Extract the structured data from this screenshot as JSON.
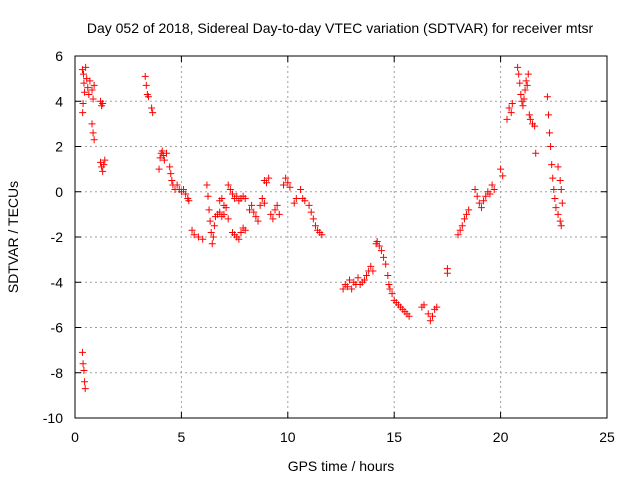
{
  "chart_data": {
    "type": "scatter",
    "title": "Day 052 of 2018, Sidereal Day-to-day VTEC variation (SDTVAR) for receiver mtsr",
    "xlabel": "GPS time / hours",
    "ylabel": "SDTVAR / TECUs",
    "xlim": [
      0,
      25
    ],
    "ylim": [
      -10,
      6
    ],
    "xticks": [
      0,
      5,
      10,
      15,
      20,
      25
    ],
    "yticks": [
      -10,
      -8,
      -6,
      -4,
      -2,
      0,
      2,
      4,
      6
    ],
    "grid": true,
    "marker": "plus",
    "color": "#ff0000",
    "points": [
      [
        0.35,
        5.4
      ],
      [
        0.4,
        5.2
      ],
      [
        0.42,
        4.8
      ],
      [
        0.45,
        4.4
      ],
      [
        0.38,
        3.9
      ],
      [
        0.36,
        3.5
      ],
      [
        0.5,
        5.5
      ],
      [
        0.55,
        5.0
      ],
      [
        0.6,
        4.6
      ],
      [
        0.65,
        4.3
      ],
      [
        0.7,
        4.9
      ],
      [
        0.8,
        4.5
      ],
      [
        0.85,
        4.1
      ],
      [
        0.9,
        4.7
      ],
      [
        0.35,
        -7.1
      ],
      [
        0.38,
        -7.6
      ],
      [
        0.42,
        -7.9
      ],
      [
        0.45,
        -8.4
      ],
      [
        0.48,
        -8.7
      ],
      [
        0.8,
        3.0
      ],
      [
        0.85,
        2.6
      ],
      [
        0.9,
        2.3
      ],
      [
        1.2,
        4.0
      ],
      [
        1.25,
        3.8
      ],
      [
        1.3,
        3.9
      ],
      [
        1.2,
        1.3
      ],
      [
        1.25,
        1.1
      ],
      [
        1.3,
        0.9
      ],
      [
        1.35,
        1.2
      ],
      [
        1.4,
        1.4
      ],
      [
        3.3,
        5.1
      ],
      [
        3.35,
        4.7
      ],
      [
        3.4,
        4.3
      ],
      [
        3.45,
        4.2
      ],
      [
        3.6,
        3.7
      ],
      [
        3.65,
        3.5
      ],
      [
        3.95,
        1.0
      ],
      [
        4.0,
        1.5
      ],
      [
        4.05,
        1.7
      ],
      [
        4.1,
        1.8
      ],
      [
        4.15,
        1.6
      ],
      [
        4.2,
        1.4
      ],
      [
        4.3,
        1.7
      ],
      [
        4.45,
        1.1
      ],
      [
        4.5,
        0.8
      ],
      [
        4.55,
        0.5
      ],
      [
        4.6,
        0.3
      ],
      [
        4.7,
        0.1
      ],
      [
        4.8,
        0.3
      ],
      [
        4.9,
        0.1
      ],
      [
        5.0,
        0.0
      ],
      [
        5.1,
        0.1
      ],
      [
        5.2,
        -0.1
      ],
      [
        5.3,
        -0.3
      ],
      [
        5.35,
        -0.4
      ],
      [
        5.5,
        -1.7
      ],
      [
        5.6,
        -1.9
      ],
      [
        5.8,
        -2.0
      ],
      [
        6.0,
        -2.1
      ],
      [
        6.2,
        0.3
      ],
      [
        6.25,
        -0.2
      ],
      [
        6.3,
        -0.8
      ],
      [
        6.35,
        -1.3
      ],
      [
        6.4,
        -1.8
      ],
      [
        6.45,
        -2.3
      ],
      [
        6.5,
        -2.0
      ],
      [
        6.55,
        -1.5
      ],
      [
        6.6,
        -1.1
      ],
      [
        6.7,
        -1.0
      ],
      [
        6.8,
        -0.9
      ],
      [
        6.9,
        -1.1
      ],
      [
        7.0,
        -1.0
      ],
      [
        7.1,
        -0.7
      ],
      [
        7.2,
        -1.2
      ],
      [
        6.8,
        -0.4
      ],
      [
        6.9,
        -0.3
      ],
      [
        7.0,
        -0.6
      ],
      [
        7.2,
        0.3
      ],
      [
        7.3,
        0.1
      ],
      [
        7.4,
        -0.1
      ],
      [
        7.5,
        -0.3
      ],
      [
        7.6,
        -0.2
      ],
      [
        7.7,
        -0.4
      ],
      [
        7.8,
        -0.3
      ],
      [
        7.9,
        -0.2
      ],
      [
        8.0,
        -0.3
      ],
      [
        7.4,
        -1.8
      ],
      [
        7.5,
        -1.9
      ],
      [
        7.6,
        -2.0
      ],
      [
        7.7,
        -2.1
      ],
      [
        7.8,
        -1.8
      ],
      [
        7.9,
        -1.6
      ],
      [
        8.0,
        -1.7
      ],
      [
        8.2,
        -0.8
      ],
      [
        8.3,
        -0.6
      ],
      [
        8.4,
        -0.9
      ],
      [
        8.5,
        -1.1
      ],
      [
        8.6,
        -1.3
      ],
      [
        8.7,
        -0.6
      ],
      [
        8.8,
        -0.3
      ],
      [
        8.9,
        -0.5
      ],
      [
        9.0,
        0.4
      ],
      [
        9.1,
        0.6
      ],
      [
        8.9,
        0.5
      ],
      [
        9.2,
        -1.0
      ],
      [
        9.3,
        -1.2
      ],
      [
        9.4,
        -0.8
      ],
      [
        9.5,
        -0.6
      ],
      [
        9.6,
        -1.0
      ],
      [
        9.8,
        0.3
      ],
      [
        9.9,
        0.6
      ],
      [
        10.0,
        0.4
      ],
      [
        10.1,
        0.2
      ],
      [
        10.3,
        -0.5
      ],
      [
        10.4,
        -0.3
      ],
      [
        10.6,
        0.1
      ],
      [
        10.7,
        -0.3
      ],
      [
        10.8,
        -0.4
      ],
      [
        11.0,
        -0.6
      ],
      [
        11.1,
        -0.9
      ],
      [
        11.2,
        -1.2
      ],
      [
        11.3,
        -1.5
      ],
      [
        11.4,
        -1.7
      ],
      [
        11.5,
        -1.8
      ],
      [
        11.6,
        -1.9
      ],
      [
        12.6,
        -4.3
      ],
      [
        12.7,
        -4.1
      ],
      [
        12.8,
        -4.2
      ],
      [
        12.9,
        -3.9
      ],
      [
        13.0,
        -4.3
      ],
      [
        13.1,
        -4.0
      ],
      [
        13.2,
        -4.1
      ],
      [
        13.3,
        -3.8
      ],
      [
        13.4,
        -4.1
      ],
      [
        13.5,
        -4.0
      ],
      [
        13.6,
        -3.9
      ],
      [
        13.7,
        -3.7
      ],
      [
        13.8,
        -3.5
      ],
      [
        13.9,
        -3.3
      ],
      [
        14.0,
        -3.5
      ],
      [
        14.15,
        -2.3
      ],
      [
        14.2,
        -2.2
      ],
      [
        14.3,
        -2.4
      ],
      [
        14.4,
        -2.6
      ],
      [
        14.5,
        -2.9
      ],
      [
        14.6,
        -3.2
      ],
      [
        14.7,
        -3.7
      ],
      [
        14.75,
        -4.1
      ],
      [
        14.8,
        -4.3
      ],
      [
        14.9,
        -4.5
      ],
      [
        15.0,
        -4.8
      ],
      [
        15.1,
        -4.9
      ],
      [
        15.2,
        -5.0
      ],
      [
        15.3,
        -5.1
      ],
      [
        15.4,
        -5.2
      ],
      [
        15.5,
        -5.3
      ],
      [
        15.6,
        -5.4
      ],
      [
        15.7,
        -5.5
      ],
      [
        16.3,
        -5.1
      ],
      [
        16.4,
        -5.0
      ],
      [
        16.6,
        -5.4
      ],
      [
        16.7,
        -5.7
      ],
      [
        16.8,
        -5.5
      ],
      [
        16.9,
        -5.2
      ],
      [
        17.0,
        -5.1
      ],
      [
        17.5,
        -3.4
      ],
      [
        17.5,
        -3.6
      ],
      [
        18.0,
        -1.9
      ],
      [
        18.1,
        -1.7
      ],
      [
        18.2,
        -1.5
      ],
      [
        18.3,
        -1.2
      ],
      [
        18.4,
        -1.0
      ],
      [
        18.5,
        -0.8
      ],
      [
        18.8,
        0.1
      ],
      [
        18.9,
        -0.2
      ],
      [
        19.0,
        -0.5
      ],
      [
        19.1,
        -0.7
      ],
      [
        19.2,
        -0.4
      ],
      [
        19.3,
        -0.2
      ],
      [
        19.4,
        0.0
      ],
      [
        19.5,
        -0.1
      ],
      [
        19.6,
        0.3
      ],
      [
        19.7,
        0.1
      ],
      [
        20.0,
        1.0
      ],
      [
        20.1,
        0.7
      ],
      [
        20.3,
        3.2
      ],
      [
        20.4,
        3.7
      ],
      [
        20.5,
        3.5
      ],
      [
        20.55,
        3.9
      ],
      [
        20.8,
        5.5
      ],
      [
        20.85,
        5.2
      ],
      [
        20.9,
        4.8
      ],
      [
        20.95,
        4.3
      ],
      [
        21.0,
        4.0
      ],
      [
        21.05,
        3.8
      ],
      [
        21.1,
        4.1
      ],
      [
        21.15,
        4.5
      ],
      [
        21.2,
        4.9
      ],
      [
        21.25,
        4.7
      ],
      [
        21.3,
        5.2
      ],
      [
        21.35,
        3.4
      ],
      [
        21.4,
        3.2
      ],
      [
        21.5,
        3.0
      ],
      [
        21.6,
        2.9
      ],
      [
        21.65,
        1.7
      ],
      [
        22.2,
        4.2
      ],
      [
        22.25,
        3.4
      ],
      [
        22.3,
        2.6
      ],
      [
        22.35,
        2.0
      ],
      [
        22.4,
        1.2
      ],
      [
        22.45,
        0.6
      ],
      [
        22.5,
        0.1
      ],
      [
        22.55,
        -0.3
      ],
      [
        22.6,
        -0.7
      ],
      [
        22.7,
        -1.0
      ],
      [
        22.8,
        -1.3
      ],
      [
        22.85,
        -1.5
      ],
      [
        22.7,
        1.1
      ],
      [
        22.8,
        0.5
      ],
      [
        22.85,
        0.1
      ],
      [
        22.9,
        -0.5
      ]
    ]
  }
}
